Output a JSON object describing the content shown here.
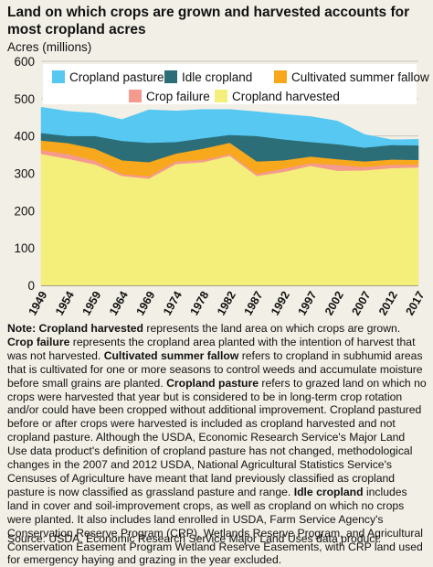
{
  "title": "Land on which crops are grown and harvested accounts for most cropland acres",
  "colors": {
    "cropland_pasture": "#56c8f2",
    "idle_cropland": "#2c6e78",
    "cultivated_summer_fallow": "#f7a81c",
    "crop_failure": "#f59a8e",
    "cropland_harvested": "#f4ee7a",
    "background": "#f2efe6"
  },
  "chart_data": {
    "type": "area",
    "stacked": true,
    "title": "Land on which crops are grown and harvested accounts for most cropland acres",
    "ylabel": "Acres (millions)",
    "xlabel": "",
    "ylim": [
      0,
      600
    ],
    "yticks": [
      "0",
      "100",
      "200",
      "300",
      "400",
      "500",
      "600"
    ],
    "grid": true,
    "legend_position": "top",
    "x": [
      "1949",
      "1954",
      "1959",
      "1964",
      "1969",
      "1974",
      "1978",
      "1982",
      "1987",
      "1992",
      "1997",
      "2002",
      "2007",
      "2012",
      "2017"
    ],
    "series": [
      {
        "name": "Cropland harvested",
        "color": "#f4ee7a",
        "values": [
          352,
          339,
          324,
          293,
          286,
          325,
          330,
          347,
          293,
          304,
          320,
          307,
          308,
          314,
          316
        ]
      },
      {
        "name": "Crop failure",
        "color": "#f59a8e",
        "values": [
          10,
          13,
          10,
          5,
          6,
          7,
          6,
          5,
          6,
          9,
          7,
          16,
          9,
          9,
          7
        ]
      },
      {
        "name": "Cultivated summer fallow",
        "color": "#f7a81c",
        "values": [
          26,
          29,
          32,
          37,
          38,
          21,
          30,
          30,
          33,
          22,
          18,
          15,
          15,
          14,
          13
        ]
      },
      {
        "name": "Idle cropland",
        "color": "#2c6e78",
        "values": [
          20,
          19,
          34,
          52,
          52,
          31,
          28,
          21,
          68,
          56,
          39,
          40,
          37,
          39,
          39
        ]
      },
      {
        "name": "Cropland pasture",
        "color": "#56c8f2",
        "values": [
          69,
          66,
          61,
          57,
          88,
          83,
          77,
          68,
          65,
          67,
          68,
          62,
          35,
          14,
          16
        ]
      }
    ],
    "legend_order": [
      "Cropland pasture",
      "Idle cropland",
      "Cultivated summer fallow",
      "Crop failure",
      "Cropland harvested"
    ]
  },
  "note": {
    "p1": "represents the land area on which crops are grown.",
    "p2": "represents the cropland area planted with the intention of harvest that was not harvested.",
    "p3": "refers to cropland in subhumid areas that is cultivated for one or more seasons to control weeds and accumulate moisture before small grains are planted.",
    "p4": "refers to grazed land on which no crops were harvested that year but is considered to be in long-term crop rotation and/or could have been cropped without additional improvement. Cropland pastured before or after crops were harvested is included as cropland harvested and not cropland pasture. Although the USDA, Economic Research Service's Major Land Use data product's definition of cropland pasture has not changed, methodological changes in the 2007 and 2012 USDA, National Agricultural Statistics Service's Censuses of Agriculture have meant that land previously classified as cropland pasture is now classified as grassland pasture and range.",
    "p5": "includes land in cover and soil-improvement crops, as well as cropland on which no crops were planted. It also includes land enrolled in USDA, Farm Service Agency's Conservation Reserve Program (CRP), Wetlands Reserve Program, and Agricultural Conservation Easement Program Wetland Reserve Easements, with CRP land used for emergency haying and grazing in the year excluded.",
    "label_prefix": "Note:",
    "term_harvested": "Cropland harvested",
    "term_failure": "Crop failure",
    "term_fallow": "Cultivated summer fallow",
    "term_pasture": "Cropland pasture",
    "term_idle": "Idle cropland"
  },
  "source": "Source: USDA, Economic Research Service Major Land Uses data product."
}
